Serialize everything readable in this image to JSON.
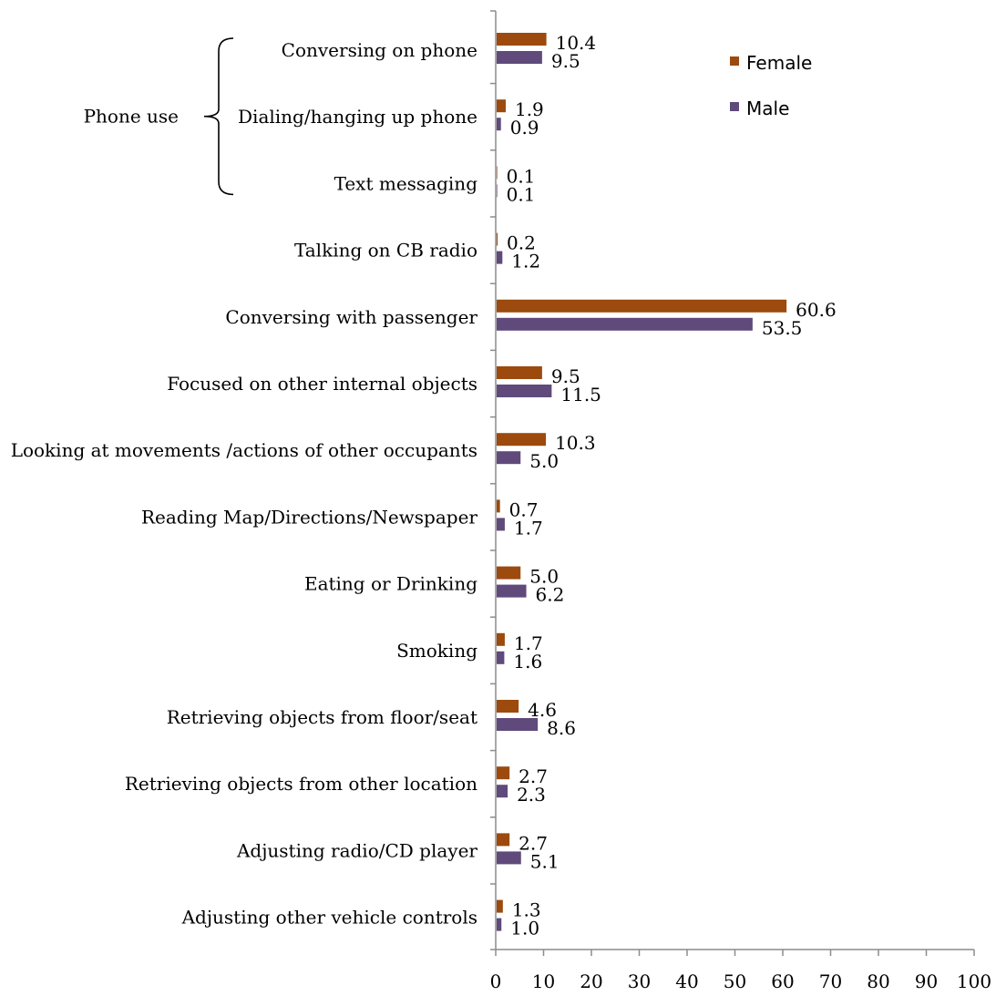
{
  "chart_data": {
    "type": "bar",
    "orientation": "horizontal",
    "categories": [
      "Conversing on phone",
      "Dialing/hanging up phone",
      "Text messaging",
      "Talking on  CB radio",
      "Conversing with passenger",
      "Focused on other internal objects",
      "Looking at movements /actions of other occupants",
      "Reading Map/Directions/Newspaper",
      "Eating or Drinking",
      "Smoking",
      "Retrieving objects from floor/seat",
      "Retrieving objects from other location",
      "Adjusting radio/CD player",
      "Adjusting other vehicle controls"
    ],
    "series": [
      {
        "name": "Female",
        "color": "#9c4a0e",
        "values": [
          10.4,
          1.9,
          0.1,
          0.2,
          60.6,
          9.5,
          10.3,
          0.7,
          5.0,
          1.7,
          4.6,
          2.7,
          2.7,
          1.3
        ],
        "labels": [
          "10.4",
          "1.9",
          "0.1",
          "0.2",
          "60.6",
          "9.5",
          "10.3",
          "0.7",
          "5.0",
          "1.7",
          "4.6",
          "2.7",
          "2.7",
          "1.3"
        ]
      },
      {
        "name": "Male",
        "color": "#5f4a7b",
        "values": [
          9.5,
          0.9,
          0.1,
          1.2,
          53.5,
          11.5,
          5.0,
          1.7,
          6.2,
          1.6,
          8.6,
          2.3,
          5.1,
          1.0
        ],
        "labels": [
          "9.5",
          "0.9",
          "0.1",
          "1.2",
          "53.5",
          "11.5",
          "5.0",
          "1.7",
          "6.2",
          "1.6",
          "8.6",
          "2.3",
          "5.1",
          "1.0"
        ]
      }
    ],
    "xlim": [
      0,
      100
    ],
    "xticks": [
      "0",
      "10",
      "20",
      "30",
      "40",
      "50",
      "60",
      "70",
      "80",
      "90",
      "100"
    ],
    "legend": {
      "position": "top-right",
      "items": [
        "Female",
        "Male"
      ]
    },
    "group": {
      "label": "Phone use",
      "categories": [
        "Conversing on phone",
        "Dialing/hanging up phone",
        "Text messaging"
      ]
    },
    "grid": false
  }
}
